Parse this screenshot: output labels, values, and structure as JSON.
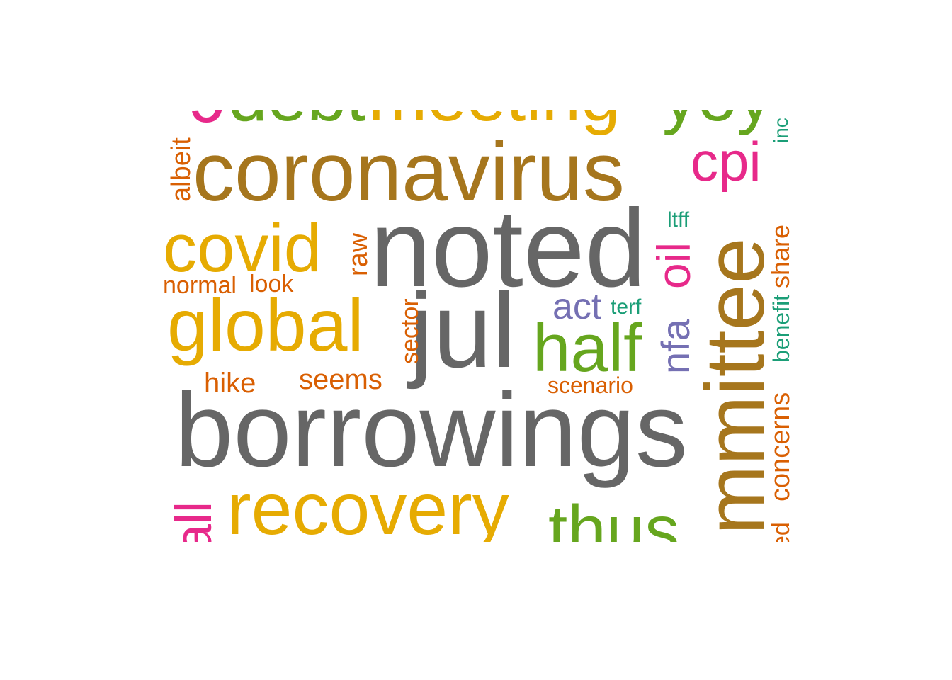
{
  "word_cloud": {
    "words": [
      {
        "text": "borrowings",
        "color": "#666666"
      },
      {
        "text": "noted",
        "color": "#666666"
      },
      {
        "text": "jul",
        "color": "#666666"
      },
      {
        "text": "coronavirus",
        "color": "#A6761D"
      },
      {
        "text": "mmittee",
        "color": "#A6761D"
      },
      {
        "text": "covid",
        "color": "#E6AB02"
      },
      {
        "text": "global",
        "color": "#E6AB02"
      },
      {
        "text": "recovery",
        "color": "#E6AB02"
      },
      {
        "text": "meeting",
        "color": "#E6AB02"
      },
      {
        "text": "half",
        "color": "#66A61E"
      },
      {
        "text": "thus",
        "color": "#66A61E"
      },
      {
        "text": "debt",
        "color": "#66A61E"
      },
      {
        "text": "yoy",
        "color": "#66A61E"
      },
      {
        "text": "cpi",
        "color": "#E7298A"
      },
      {
        "text": "oil",
        "color": "#E7298A"
      },
      {
        "text": "all",
        "color": "#E7298A"
      },
      {
        "text": "act",
        "color": "#7570B3"
      },
      {
        "text": "nfa",
        "color": "#7570B3"
      },
      {
        "text": "albeit",
        "color": "#D95F02"
      },
      {
        "text": "raw",
        "color": "#D95F02"
      },
      {
        "text": "normal",
        "color": "#D95F02"
      },
      {
        "text": "look",
        "color": "#D95F02"
      },
      {
        "text": "sector",
        "color": "#D95F02"
      },
      {
        "text": "hike",
        "color": "#D95F02"
      },
      {
        "text": "seems",
        "color": "#D95F02"
      },
      {
        "text": "scenario",
        "color": "#D95F02"
      },
      {
        "text": "share",
        "color": "#D95F02"
      },
      {
        "text": "concerns",
        "color": "#D95F02"
      },
      {
        "text": "ed",
        "color": "#D95F02"
      },
      {
        "text": "inc",
        "color": "#1B9E77"
      },
      {
        "text": "ltff",
        "color": "#1B9E77"
      },
      {
        "text": "terf",
        "color": "#1B9E77"
      },
      {
        "text": "benefit",
        "color": "#1B9E77"
      }
    ]
  }
}
